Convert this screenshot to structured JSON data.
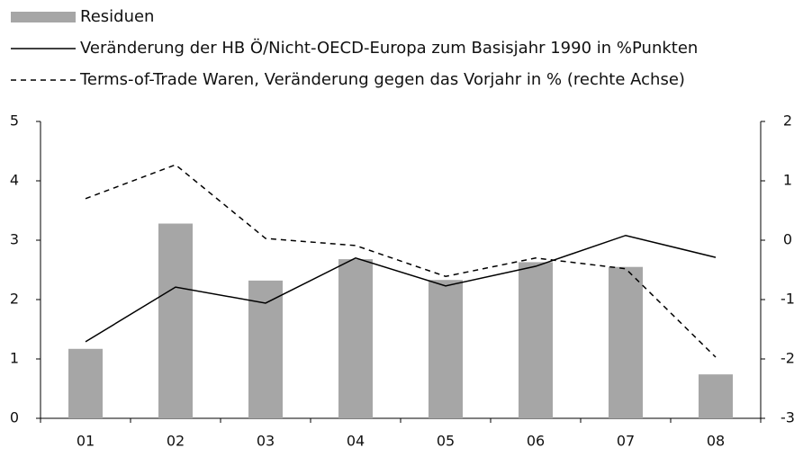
{
  "chart_data": {
    "type": "bar-line",
    "categories": [
      "01",
      "02",
      "03",
      "04",
      "05",
      "06",
      "07",
      "08"
    ],
    "series": [
      {
        "name": "Residuen",
        "type": "bar",
        "color": "#a6a6a6",
        "values": [
          1.17,
          3.28,
          2.32,
          2.68,
          2.33,
          2.63,
          2.55,
          0.74
        ]
      },
      {
        "name": "Veränderung der HB Ö/Nicht-OECD-Europa zum Basisjahr 1990 in %Punkten",
        "type": "line",
        "color": "#000000",
        "values": [
          1.29,
          2.21,
          1.94,
          2.7,
          2.23,
          2.56,
          3.08,
          2.71
        ]
      },
      {
        "name": "Terms-of-Trade Waren, Veränderung gegen das Vorjahr in % (rechte Achse)",
        "type": "dashed-line",
        "color": "#000000",
        "axis": "y2",
        "values": [
          0.7,
          1.27,
          0.03,
          -0.09,
          -0.61,
          -0.3,
          -0.48,
          -1.97
        ]
      }
    ],
    "ylim": [
      0,
      5
    ],
    "yticks": [
      0,
      1,
      2,
      3,
      4,
      5
    ],
    "y2lim": [
      -3,
      2
    ],
    "y2ticks": [
      -3,
      -2,
      -1,
      0,
      1,
      2
    ],
    "grid": false,
    "legend": "top"
  }
}
